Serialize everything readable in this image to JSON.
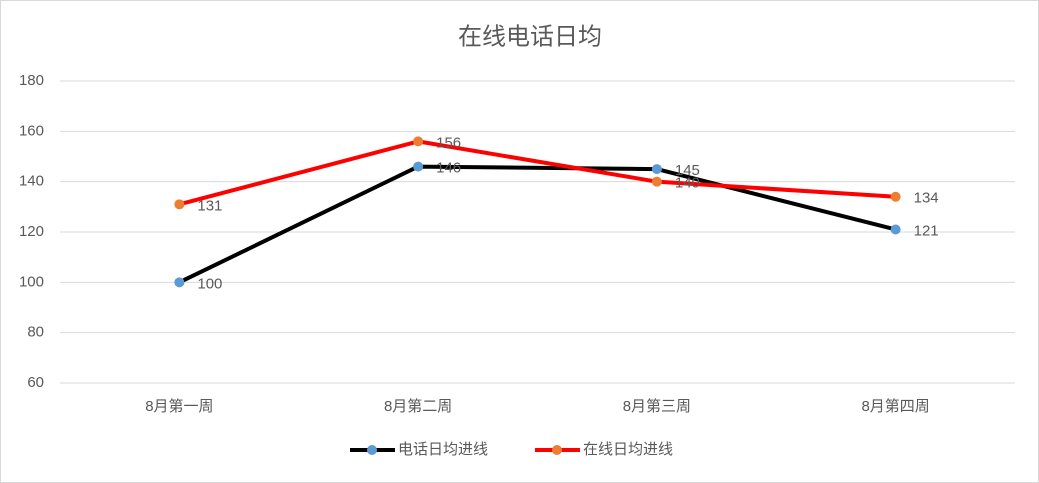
{
  "chart_data": {
    "type": "line",
    "title": "在线电话日均",
    "categories": [
      "8月第一周",
      "8月第二周",
      "8月第三周",
      "8月第四周"
    ],
    "series": [
      {
        "name": "电话日均进线",
        "color": "#000000",
        "marker_color": "#5b9bd5",
        "values": [
          100,
          146,
          145,
          121
        ]
      },
      {
        "name": "在线日均进线",
        "color": "#ff0000",
        "marker_color": "#ed7d31",
        "values": [
          131,
          156,
          140,
          134
        ]
      }
    ],
    "ylim": [
      60,
      180
    ],
    "yticks": [
      60,
      80,
      100,
      120,
      140,
      160,
      180
    ],
    "grid": true,
    "legend": "bottom"
  }
}
